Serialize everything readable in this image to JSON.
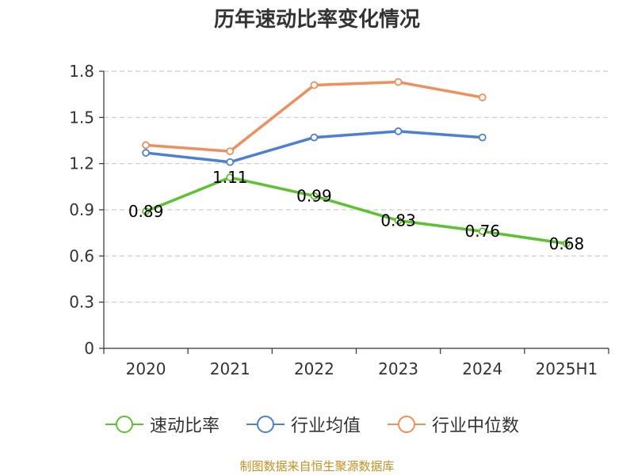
{
  "chart_data": {
    "type": "line",
    "title": "历年速动比率变化情况",
    "categories": [
      "2020",
      "2021",
      "2022",
      "2023",
      "2024",
      "2025H1"
    ],
    "ylim": [
      0,
      1.8
    ],
    "yticks": [
      "0",
      "0.3",
      "0.6",
      "0.9",
      "1.2",
      "1.5",
      "1.8"
    ],
    "grid": true,
    "legend_position": "bottom",
    "series": [
      {
        "name": "速动比率",
        "color": "#5bc42c",
        "values": [
          0.89,
          1.11,
          0.99,
          0.83,
          0.76,
          0.68
        ],
        "labels": [
          "0.89",
          "1.11",
          "0.99",
          "0.83",
          "0.76",
          "0.68"
        ],
        "show_labels": true
      },
      {
        "name": "行业均值",
        "color": "#4a7fdb",
        "values": [
          1.27,
          1.21,
          1.37,
          1.41,
          1.37,
          null
        ],
        "show_labels": false
      },
      {
        "name": "行业中位数",
        "color": "#f28e5b",
        "values": [
          1.32,
          1.28,
          1.71,
          1.73,
          1.63,
          null
        ],
        "show_labels": false
      }
    ]
  },
  "source_note": "制图数据来自恒生聚源数据库"
}
